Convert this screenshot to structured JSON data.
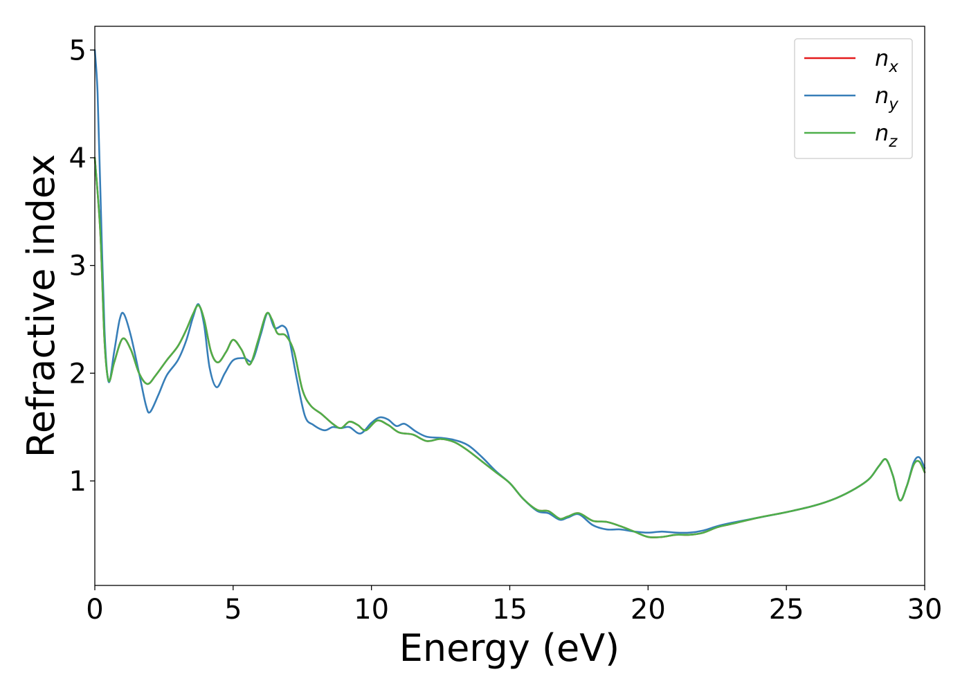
{
  "chart_data": {
    "type": "line",
    "xlabel": "Energy (eV)",
    "ylabel": "Refractive index",
    "xlim": [
      0,
      30
    ],
    "ylim": [
      0.03,
      5.22
    ],
    "xticks": [
      0,
      5,
      10,
      15,
      20,
      25,
      30
    ],
    "xtick_labels": [
      "0",
      "5",
      "10",
      "15",
      "20",
      "25",
      "30"
    ],
    "yticks": [
      1,
      2,
      3,
      4,
      5
    ],
    "ytick_labels": [
      "1",
      "2",
      "3",
      "4",
      "5"
    ],
    "grid": false,
    "legend_position": "top-right",
    "series": [
      {
        "name": "n_x",
        "label_base": "n",
        "label_sub": "x",
        "color": "#e41a1c",
        "points": [
          [
            0,
            4.0
          ],
          [
            0.2,
            3.3
          ],
          [
            0.35,
            2.3
          ],
          [
            0.5,
            1.93
          ],
          [
            0.7,
            2.1
          ],
          [
            1.0,
            2.32
          ],
          [
            1.3,
            2.22
          ],
          [
            1.6,
            2.0
          ],
          [
            1.9,
            1.9
          ],
          [
            2.2,
            1.98
          ],
          [
            2.6,
            2.12
          ],
          [
            3.0,
            2.25
          ],
          [
            3.3,
            2.4
          ],
          [
            3.55,
            2.55
          ],
          [
            3.75,
            2.63
          ],
          [
            3.95,
            2.5
          ],
          [
            4.2,
            2.2
          ],
          [
            4.45,
            2.1
          ],
          [
            4.75,
            2.2
          ],
          [
            5.0,
            2.31
          ],
          [
            5.3,
            2.22
          ],
          [
            5.6,
            2.08
          ],
          [
            5.9,
            2.3
          ],
          [
            6.2,
            2.55
          ],
          [
            6.4,
            2.5
          ],
          [
            6.6,
            2.37
          ],
          [
            6.9,
            2.35
          ],
          [
            7.2,
            2.2
          ],
          [
            7.5,
            1.85
          ],
          [
            7.8,
            1.7
          ],
          [
            8.2,
            1.62
          ],
          [
            8.6,
            1.53
          ],
          [
            8.9,
            1.49
          ],
          [
            9.2,
            1.55
          ],
          [
            9.5,
            1.52
          ],
          [
            9.8,
            1.47
          ],
          [
            10.2,
            1.56
          ],
          [
            10.6,
            1.52
          ],
          [
            11.0,
            1.45
          ],
          [
            11.5,
            1.43
          ],
          [
            12.0,
            1.37
          ],
          [
            12.5,
            1.39
          ],
          [
            13.0,
            1.36
          ],
          [
            13.5,
            1.28
          ],
          [
            14.0,
            1.18
          ],
          [
            14.5,
            1.08
          ],
          [
            15.0,
            0.98
          ],
          [
            15.5,
            0.83
          ],
          [
            16.0,
            0.73
          ],
          [
            16.4,
            0.72
          ],
          [
            16.8,
            0.65
          ],
          [
            17.1,
            0.67
          ],
          [
            17.5,
            0.7
          ],
          [
            18.0,
            0.63
          ],
          [
            18.5,
            0.62
          ],
          [
            19.0,
            0.58
          ],
          [
            19.5,
            0.53
          ],
          [
            20.0,
            0.48
          ],
          [
            20.5,
            0.48
          ],
          [
            21.0,
            0.5
          ],
          [
            21.5,
            0.5
          ],
          [
            22.0,
            0.52
          ],
          [
            22.5,
            0.57
          ],
          [
            23.0,
            0.6
          ],
          [
            24.0,
            0.66
          ],
          [
            25.0,
            0.71
          ],
          [
            26.0,
            0.77
          ],
          [
            26.8,
            0.84
          ],
          [
            27.5,
            0.93
          ],
          [
            28.0,
            1.02
          ],
          [
            28.35,
            1.14
          ],
          [
            28.6,
            1.2
          ],
          [
            28.85,
            1.05
          ],
          [
            29.1,
            0.82
          ],
          [
            29.35,
            0.95
          ],
          [
            29.6,
            1.15
          ],
          [
            29.8,
            1.18
          ],
          [
            30.0,
            1.08
          ]
        ]
      },
      {
        "name": "n_y",
        "label_base": "n",
        "label_sub": "y",
        "color": "#377eb8",
        "points": [
          [
            0,
            5.0
          ],
          [
            0.1,
            4.6
          ],
          [
            0.2,
            3.7
          ],
          [
            0.35,
            2.4
          ],
          [
            0.5,
            1.92
          ],
          [
            0.7,
            2.2
          ],
          [
            0.9,
            2.5
          ],
          [
            1.05,
            2.55
          ],
          [
            1.3,
            2.35
          ],
          [
            1.6,
            2.0
          ],
          [
            1.85,
            1.7
          ],
          [
            2.0,
            1.64
          ],
          [
            2.3,
            1.8
          ],
          [
            2.6,
            1.98
          ],
          [
            3.0,
            2.12
          ],
          [
            3.3,
            2.3
          ],
          [
            3.55,
            2.52
          ],
          [
            3.75,
            2.64
          ],
          [
            3.95,
            2.45
          ],
          [
            4.15,
            2.05
          ],
          [
            4.4,
            1.87
          ],
          [
            4.7,
            2.0
          ],
          [
            5.0,
            2.12
          ],
          [
            5.4,
            2.14
          ],
          [
            5.7,
            2.12
          ],
          [
            6.0,
            2.36
          ],
          [
            6.25,
            2.56
          ],
          [
            6.5,
            2.42
          ],
          [
            6.8,
            2.44
          ],
          [
            7.0,
            2.35
          ],
          [
            7.3,
            1.95
          ],
          [
            7.6,
            1.6
          ],
          [
            7.9,
            1.52
          ],
          [
            8.3,
            1.47
          ],
          [
            8.6,
            1.5
          ],
          [
            8.9,
            1.49
          ],
          [
            9.2,
            1.5
          ],
          [
            9.6,
            1.44
          ],
          [
            10.0,
            1.54
          ],
          [
            10.3,
            1.59
          ],
          [
            10.6,
            1.57
          ],
          [
            10.9,
            1.51
          ],
          [
            11.2,
            1.53
          ],
          [
            11.6,
            1.46
          ],
          [
            12.0,
            1.41
          ],
          [
            12.5,
            1.4
          ],
          [
            13.0,
            1.38
          ],
          [
            13.5,
            1.33
          ],
          [
            14.0,
            1.22
          ],
          [
            14.5,
            1.09
          ],
          [
            15.0,
            0.98
          ],
          [
            15.5,
            0.83
          ],
          [
            16.0,
            0.72
          ],
          [
            16.4,
            0.7
          ],
          [
            16.8,
            0.64
          ],
          [
            17.1,
            0.66
          ],
          [
            17.5,
            0.69
          ],
          [
            18.0,
            0.59
          ],
          [
            18.5,
            0.55
          ],
          [
            19.0,
            0.55
          ],
          [
            19.5,
            0.53
          ],
          [
            20.0,
            0.52
          ],
          [
            20.5,
            0.53
          ],
          [
            21.0,
            0.52
          ],
          [
            21.5,
            0.52
          ],
          [
            22.0,
            0.54
          ],
          [
            22.5,
            0.58
          ],
          [
            23.0,
            0.61
          ],
          [
            24.0,
            0.66
          ],
          [
            25.0,
            0.71
          ],
          [
            26.0,
            0.77
          ],
          [
            26.8,
            0.84
          ],
          [
            27.5,
            0.93
          ],
          [
            28.0,
            1.02
          ],
          [
            28.35,
            1.14
          ],
          [
            28.6,
            1.2
          ],
          [
            28.85,
            1.05
          ],
          [
            29.1,
            0.82
          ],
          [
            29.35,
            0.95
          ],
          [
            29.6,
            1.17
          ],
          [
            29.8,
            1.22
          ],
          [
            30.0,
            1.12
          ]
        ]
      },
      {
        "name": "n_z",
        "label_base": "n",
        "label_sub": "z",
        "color": "#4daf4a",
        "points": [
          [
            0,
            4.0
          ],
          [
            0.2,
            3.3
          ],
          [
            0.35,
            2.3
          ],
          [
            0.5,
            1.93
          ],
          [
            0.7,
            2.1
          ],
          [
            1.0,
            2.32
          ],
          [
            1.3,
            2.22
          ],
          [
            1.6,
            2.0
          ],
          [
            1.9,
            1.9
          ],
          [
            2.2,
            1.98
          ],
          [
            2.6,
            2.12
          ],
          [
            3.0,
            2.25
          ],
          [
            3.3,
            2.4
          ],
          [
            3.55,
            2.55
          ],
          [
            3.75,
            2.63
          ],
          [
            3.95,
            2.5
          ],
          [
            4.2,
            2.2
          ],
          [
            4.45,
            2.1
          ],
          [
            4.75,
            2.2
          ],
          [
            5.0,
            2.31
          ],
          [
            5.3,
            2.22
          ],
          [
            5.6,
            2.08
          ],
          [
            5.9,
            2.3
          ],
          [
            6.2,
            2.55
          ],
          [
            6.4,
            2.5
          ],
          [
            6.6,
            2.37
          ],
          [
            6.9,
            2.35
          ],
          [
            7.2,
            2.2
          ],
          [
            7.5,
            1.85
          ],
          [
            7.8,
            1.7
          ],
          [
            8.2,
            1.62
          ],
          [
            8.6,
            1.53
          ],
          [
            8.9,
            1.49
          ],
          [
            9.2,
            1.55
          ],
          [
            9.5,
            1.52
          ],
          [
            9.8,
            1.47
          ],
          [
            10.2,
            1.56
          ],
          [
            10.6,
            1.52
          ],
          [
            11.0,
            1.45
          ],
          [
            11.5,
            1.43
          ],
          [
            12.0,
            1.37
          ],
          [
            12.5,
            1.39
          ],
          [
            13.0,
            1.36
          ],
          [
            13.5,
            1.28
          ],
          [
            14.0,
            1.18
          ],
          [
            14.5,
            1.08
          ],
          [
            15.0,
            0.98
          ],
          [
            15.5,
            0.83
          ],
          [
            16.0,
            0.73
          ],
          [
            16.4,
            0.72
          ],
          [
            16.8,
            0.65
          ],
          [
            17.1,
            0.67
          ],
          [
            17.5,
            0.7
          ],
          [
            18.0,
            0.63
          ],
          [
            18.5,
            0.62
          ],
          [
            19.0,
            0.58
          ],
          [
            19.5,
            0.53
          ],
          [
            20.0,
            0.48
          ],
          [
            20.5,
            0.48
          ],
          [
            21.0,
            0.5
          ],
          [
            21.5,
            0.5
          ],
          [
            22.0,
            0.52
          ],
          [
            22.5,
            0.57
          ],
          [
            23.0,
            0.6
          ],
          [
            24.0,
            0.66
          ],
          [
            25.0,
            0.71
          ],
          [
            26.0,
            0.77
          ],
          [
            26.8,
            0.84
          ],
          [
            27.5,
            0.93
          ],
          [
            28.0,
            1.02
          ],
          [
            28.35,
            1.14
          ],
          [
            28.6,
            1.2
          ],
          [
            28.85,
            1.05
          ],
          [
            29.1,
            0.82
          ],
          [
            29.35,
            0.95
          ],
          [
            29.6,
            1.15
          ],
          [
            29.8,
            1.18
          ],
          [
            30.0,
            1.08
          ]
        ]
      }
    ]
  }
}
